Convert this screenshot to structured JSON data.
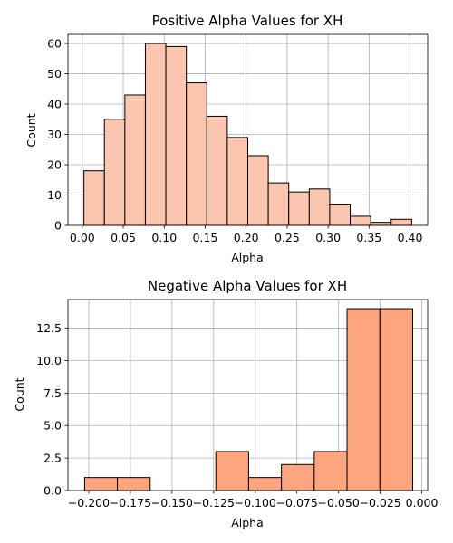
{
  "chart_data": [
    {
      "type": "bar",
      "title": "Positive Alpha Values for XH",
      "xlabel": "Alpha",
      "ylabel": "Count",
      "bar_color": "#fcc5b0",
      "edge_color": "#000000",
      "grid": true,
      "xlim": [
        -0.0175,
        0.4215
      ],
      "ylim": [
        0,
        63
      ],
      "x_ticks": [
        0.0,
        0.05,
        0.1,
        0.15,
        0.2,
        0.25,
        0.3,
        0.35,
        0.4
      ],
      "x_tick_labels": [
        "0.00",
        "0.05",
        "0.10",
        "0.15",
        "0.20",
        "0.25",
        "0.30",
        "0.35",
        "0.40"
      ],
      "y_ticks": [
        0,
        10,
        20,
        30,
        40,
        50,
        60
      ],
      "y_tick_labels": [
        "0",
        "10",
        "20",
        "30",
        "40",
        "50",
        "60"
      ],
      "bin_edges": [
        0.002,
        0.027,
        0.052,
        0.077,
        0.102,
        0.127,
        0.152,
        0.177,
        0.202,
        0.227,
        0.252,
        0.277,
        0.302,
        0.327,
        0.352,
        0.377,
        0.402
      ],
      "values": [
        18,
        35,
        43,
        60,
        59,
        47,
        36,
        29,
        23,
        14,
        11,
        12,
        7,
        3,
        1,
        2
      ]
    },
    {
      "type": "bar",
      "title": "Negative Alpha Values for XH",
      "xlabel": "Alpha",
      "ylabel": "Count",
      "bar_color": "#fca57f",
      "edge_color": "#000000",
      "grid": true,
      "xlim": [
        -0.2125,
        0.0035
      ],
      "ylim": [
        0,
        14.7
      ],
      "x_ticks": [
        -0.2,
        -0.175,
        -0.15,
        -0.125,
        -0.1,
        -0.075,
        -0.05,
        -0.025,
        0.0
      ],
      "x_tick_labels": [
        "−0.200",
        "−0.175",
        "−0.150",
        "−0.125",
        "−0.100",
        "−0.075",
        "−0.050",
        "−0.025",
        "0.000"
      ],
      "y_ticks": [
        0,
        2.5,
        5.0,
        7.5,
        10.0,
        12.5
      ],
      "y_tick_labels": [
        "0.0",
        "2.5",
        "5.0",
        "7.5",
        "10.0",
        "12.5"
      ],
      "bin_edges": [
        -0.2025,
        -0.1828,
        -0.1631,
        -0.1434,
        -0.1237,
        -0.104,
        -0.0843,
        -0.0646,
        -0.0449,
        -0.0252,
        -0.0055
      ],
      "values": [
        1,
        1,
        0,
        0,
        3,
        1,
        2,
        3,
        14,
        14
      ]
    }
  ]
}
